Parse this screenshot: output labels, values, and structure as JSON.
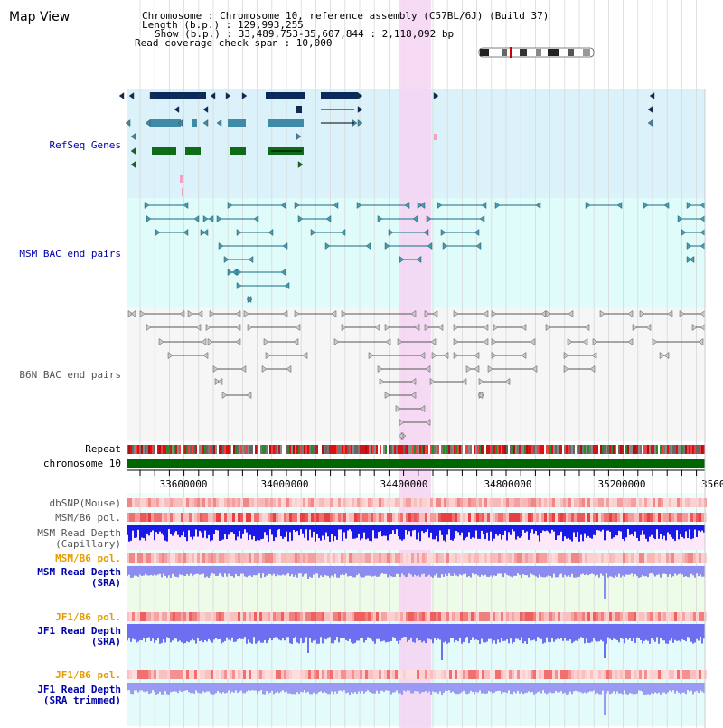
{
  "title": "Map View",
  "header": {
    "chromosome": "Chromosome    : Chromosome 10, reference assembly (C57BL/6J) (Build 37)",
    "length": "Length (b.p.) : 129,993,255",
    "show": "Show (b.p.) : 33,489,753-35,607,844 : 2,118,092 bp",
    "coverage": "Read coverage check span : 10,000"
  },
  "tracks": {
    "refseq": "RefSeq Genes",
    "msm_bac": "MSM BAC end pairs",
    "b6n_bac": "B6N BAC end pairs",
    "repeat": "Repeat",
    "chrom": "chromosome 10",
    "dbsnp": "dbSNP(Mouse)",
    "msm_pol1": "MSM/B6 pol.",
    "msm_depth_cap_1": "MSM Read Depth",
    "msm_depth_cap_2": "(Capillary)",
    "msm_pol2": "MSM/B6 pol.",
    "msm_depth_sra_1": "MSM Read Depth",
    "msm_depth_sra_2": "(SRA)",
    "jf1_pol1": "JF1/B6 pol.",
    "jf1_depth_sra_1": "JF1 Read Depth",
    "jf1_depth_sra_2": "(SRA)",
    "jf1_pol2": "JF1/B6 pol.",
    "jf1_depth_tr_1": "JF1 Read Depth",
    "jf1_depth_tr_2": "(SRA trimmed)"
  },
  "axis": {
    "ticks": [
      "33600000",
      "34000000",
      "34400000",
      "34800000",
      "35200000",
      "3560"
    ]
  },
  "colors": {
    "refseq_bg": "#dbf2fa",
    "msm_bg": "#e0fcfa",
    "b6n_bg": "#f4f4f4",
    "highlight": "#f6d4f2",
    "label_blue": "#0000aa",
    "label_orange": "#e69b00",
    "chrom_green": "#006600"
  }
}
